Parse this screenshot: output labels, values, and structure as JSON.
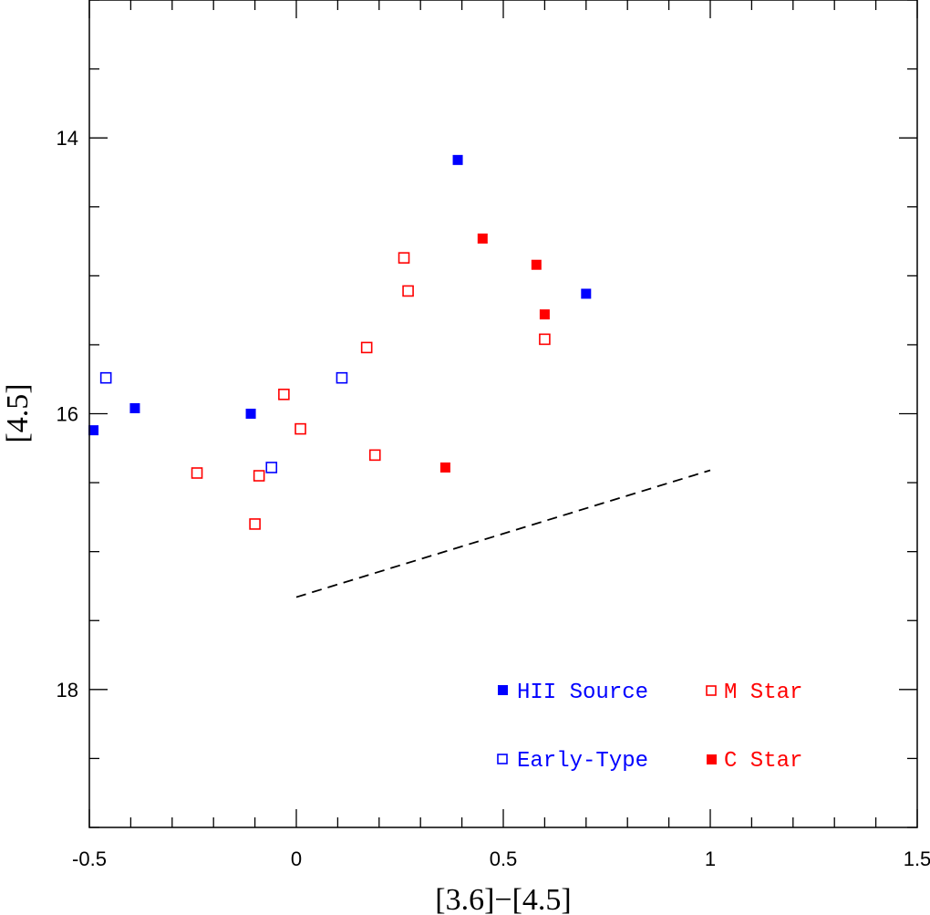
{
  "chart_data": {
    "type": "scatter",
    "xlabel": "[3.6]−[4.5]",
    "ylabel": "[4.5]",
    "xlim": [
      -0.5,
      1.5
    ],
    "ylim": [
      19.0,
      13.0
    ],
    "y_inverted": true,
    "x_ticks": [
      {
        "value": -0.5,
        "label": "-0.5"
      },
      {
        "value": 0,
        "label": "0"
      },
      {
        "value": 0.5,
        "label": "0.5"
      },
      {
        "value": 1,
        "label": "1"
      },
      {
        "value": 1.5,
        "label": "1.5"
      }
    ],
    "y_ticks": [
      {
        "value": 14,
        "label": "14"
      },
      {
        "value": 16,
        "label": "16"
      },
      {
        "value": 18,
        "label": "18"
      }
    ],
    "series": [
      {
        "name": "HII Source",
        "color": "#0000ff",
        "marker": "filled-square",
        "points": [
          [
            0.39,
            14.16
          ],
          [
            0.7,
            15.13
          ],
          [
            -0.39,
            15.96
          ],
          [
            -0.11,
            16.0
          ],
          [
            -0.49,
            16.12
          ]
        ]
      },
      {
        "name": "Early-Type",
        "color": "#0000ff",
        "marker": "open-square",
        "points": [
          [
            -0.46,
            15.74
          ],
          [
            0.11,
            15.74
          ],
          [
            -0.06,
            16.39
          ]
        ]
      },
      {
        "name": "M Star",
        "color": "#ff0000",
        "marker": "open-square",
        "points": [
          [
            0.26,
            14.87
          ],
          [
            0.27,
            15.11
          ],
          [
            0.6,
            15.46
          ],
          [
            0.17,
            15.52
          ],
          [
            -0.03,
            15.86
          ],
          [
            0.01,
            16.11
          ],
          [
            0.19,
            16.3
          ],
          [
            -0.24,
            16.43
          ],
          [
            -0.09,
            16.45
          ],
          [
            -0.1,
            16.8
          ]
        ]
      },
      {
        "name": "C Star",
        "color": "#ff0000",
        "marker": "filled-square",
        "points": [
          [
            0.45,
            14.73
          ],
          [
            0.58,
            14.92
          ],
          [
            0.6,
            15.28
          ],
          [
            0.36,
            16.39
          ]
        ]
      }
    ],
    "reference_line": {
      "style": "dashed",
      "color": "#000000",
      "points": [
        [
          0.0,
          17.33
        ],
        [
          1.0,
          16.41
        ]
      ]
    },
    "legend": {
      "placement": "bottom-right",
      "entries": [
        {
          "label": "HII Source",
          "color": "#0000ff",
          "marker": "filled-square"
        },
        {
          "label": "M Star",
          "color": "#ff0000",
          "marker": "open-square"
        },
        {
          "label": "Early-Type",
          "color": "#0000ff",
          "marker": "open-square"
        },
        {
          "label": "C Star",
          "color": "#ff0000",
          "marker": "filled-square"
        }
      ]
    }
  }
}
